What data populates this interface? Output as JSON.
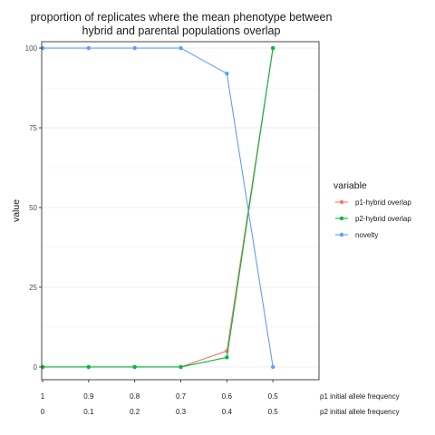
{
  "chart_data": {
    "type": "line",
    "title_lines": [
      "proportion of replicates where the mean phenotype between",
      "hybrid and parental populations overlap"
    ],
    "ylabel": "value",
    "ylim": [
      -4,
      102
    ],
    "yticks": [
      0,
      25,
      50,
      75,
      100
    ],
    "x_index": [
      0,
      1,
      2,
      3,
      4,
      5
    ],
    "xlim": [
      -0.02,
      6.0
    ],
    "x_rows": [
      {
        "label": "p1 initial allele frequency",
        "ticks": [
          "1",
          "0.9",
          "0.8",
          "0.7",
          "0.6",
          "0.5"
        ]
      },
      {
        "label": "p2 initial allele frequency",
        "ticks": [
          "0",
          "0.1",
          "0.2",
          "0.3",
          "0.4",
          "0.5"
        ]
      }
    ],
    "grid": true,
    "legend_title": "variable",
    "legend_position": "right",
    "series": [
      {
        "name": "p1-hybrid overlap",
        "color": "#F8766D",
        "values": [
          0,
          0,
          0,
          0,
          5,
          100
        ]
      },
      {
        "name": "p2-hybrid overlap",
        "color": "#00BA38",
        "values": [
          0,
          0,
          0,
          0,
          3,
          100
        ]
      },
      {
        "name": "novelty",
        "color": "#619CFF",
        "values": [
          100,
          100,
          100,
          100,
          92,
          0
        ]
      }
    ]
  }
}
